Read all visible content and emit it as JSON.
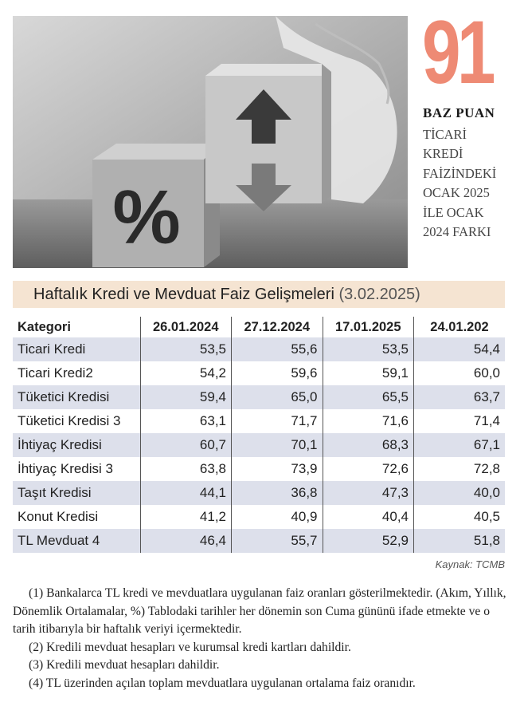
{
  "highlight": {
    "number": "91",
    "unit": "BAZ PUAN",
    "caption_lines": [
      "TİCARİ",
      "KREDİ",
      "FAİZİNDEKİ",
      "OCAK 2025",
      "İLE OCAK",
      "2024 FARKI"
    ],
    "accent_color": "#ee8a74"
  },
  "photo": {
    "cube_left_symbol": "%",
    "cube_right_icons": [
      "arrow-up-icon",
      "arrow-down-icon"
    ]
  },
  "table": {
    "title": "Haftalık Kredi ve Mevduat Faiz Gelişmeleri",
    "title_date": "(3.02.2025)",
    "headers": [
      "Kategori",
      "26.01.2024",
      "27.12.2024",
      "17.01.2025",
      "24.01.202"
    ],
    "rows": [
      [
        "Ticari Kredi",
        "53,5",
        "55,6",
        "53,5",
        "54,4"
      ],
      [
        "Ticari Kredi2",
        "54,2",
        "59,6",
        "59,1",
        "60,0"
      ],
      [
        "Tüketici Kredisi",
        "59,4",
        "65,0",
        "65,5",
        "63,7"
      ],
      [
        "Tüketici Kredisi 3",
        "63,1",
        "71,7",
        "71,6",
        "71,4"
      ],
      [
        "İhtiyaç Kredisi",
        "60,7",
        "70,1",
        "68,3",
        "67,1"
      ],
      [
        "İhtiyaç Kredisi 3",
        "63,8",
        "73,9",
        "72,6",
        "72,8"
      ],
      [
        "Taşıt Kredisi",
        "44,1",
        "36,8",
        "47,3",
        "40,0"
      ],
      [
        "Konut Kredisi",
        "41,2",
        "40,9",
        "40,4",
        "40,5"
      ],
      [
        "TL Mevduat 4",
        "46,4",
        "55,7",
        "52,9",
        "51,8"
      ]
    ],
    "header_bg": "#f5e4d2",
    "stripe_color": "#dde0eb"
  },
  "source": "Kaynak: TCMB",
  "notes": {
    "note1": "(1) Bankalarca TL kredi ve mevduatlara uygulanan faiz oranları gösterilmektedir. (Akım, Yıllık, Dönemlik Ortalamalar, %) Tablodaki tarihler her dönemin son Cuma gününü ifade etmekte ve o tarih itibarıyla bir haftalık veriyi içermektedir.",
    "note2": "(2) Kredili mevduat hesapları ve kurumsal kredi kartları dahildir.",
    "note3": "(3) Kredili mevduat hesapları dahildir.",
    "note4": "(4) TL üzerinden açılan toplam mevduatlara uygulanan ortalama faiz oranıdır."
  }
}
